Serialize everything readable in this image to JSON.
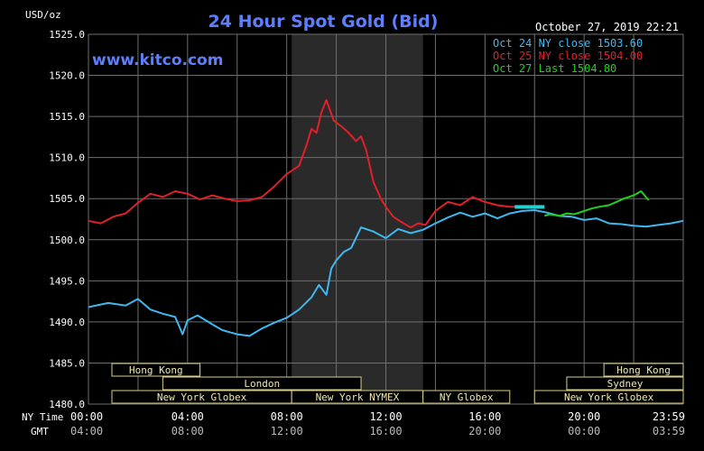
{
  "header": {
    "unit": "USD/oz",
    "title": "24 Hour Spot Gold (Bid)",
    "watermark": "www.kitco.com",
    "timestamp": "October 27, 2019 22:21"
  },
  "legend": [
    {
      "text": "Oct 24 NY close 1503.60",
      "color": "#3fb8f0"
    },
    {
      "text": "Oct 25 NY close 1504.00",
      "color": "#e0202a"
    },
    {
      "text": "Oct 27 Last 1504.80",
      "color": "#22d020"
    }
  ],
  "axis_prefix": {
    "ny": "NY Time",
    "gmt": "GMT"
  },
  "sessions": [
    {
      "id": "hong-kong-1",
      "label": "Hong Kong"
    },
    {
      "id": "london",
      "label": "London"
    },
    {
      "id": "new-york-globex-1",
      "label": "New York Globex"
    },
    {
      "id": "new-york-nymex",
      "label": "New York NYMEX"
    },
    {
      "id": "ny-globex",
      "label": "NY Globex"
    },
    {
      "id": "hong-kong-2",
      "label": "Hong Kong"
    },
    {
      "id": "sydney",
      "label": "Sydney"
    },
    {
      "id": "new-york-globex-2",
      "label": "New York Globex"
    }
  ],
  "chart_data": {
    "type": "line",
    "title": "24 Hour Spot Gold (Bid)",
    "ylabel": "USD/oz",
    "xlabel": "",
    "ylim": [
      1480,
      1525
    ],
    "y_ticks": [
      1480,
      1485,
      1490,
      1495,
      1500,
      1505,
      1510,
      1515,
      1520,
      1525
    ],
    "y_tick_labels": [
      "1480.0",
      "1485.0",
      "1490.0",
      "1495.0",
      "1500.0",
      "1505.0",
      "1510.0",
      "1515.0",
      "1520.0",
      "1525.0"
    ],
    "x_range_hours": [
      0,
      24
    ],
    "x_ticks_hours": [
      0,
      4,
      8,
      12,
      16,
      20,
      24
    ],
    "x_tick_labels_ny": [
      "00:00",
      "04:00",
      "08:00",
      "12:00",
      "16:00",
      "20:00",
      "23:59"
    ],
    "x_tick_labels_gmt": [
      "04:00",
      "08:00",
      "12:00",
      "16:00",
      "20:00",
      "00:00",
      "03:59"
    ],
    "highlight_band_hours": [
      8.2,
      13.5
    ],
    "grid": true,
    "legend_position": "top-right",
    "series": [
      {
        "name": "Oct 24 NY close 1503.60",
        "color": "#3fb8f0",
        "x": [
          0,
          0.8,
          1.5,
          2.0,
          2.5,
          3.0,
          3.5,
          3.8,
          4.0,
          4.4,
          5.0,
          5.4,
          6.0,
          6.5,
          7.0,
          7.5,
          8.0,
          8.5,
          9.0,
          9.3,
          9.6,
          9.8,
          10.0,
          10.3,
          10.6,
          11.0,
          11.5,
          12.0,
          12.5,
          13.0,
          13.5,
          14.0,
          14.5,
          15.0,
          15.5,
          16.0,
          16.5,
          17.0,
          17.5,
          18.0,
          18.5,
          19.0,
          19.5,
          20.0,
          20.5,
          21.0,
          21.5,
          22.0,
          22.5,
          23.0,
          23.5,
          24.0
        ],
        "y": [
          1491.8,
          1492.3,
          1492.0,
          1492.8,
          1491.5,
          1491.0,
          1490.6,
          1488.5,
          1490.2,
          1490.8,
          1489.7,
          1489.0,
          1488.5,
          1488.3,
          1489.2,
          1489.9,
          1490.5,
          1491.5,
          1493.0,
          1494.5,
          1493.3,
          1496.5,
          1497.5,
          1498.5,
          1499.0,
          1501.5,
          1501.0,
          1500.2,
          1501.3,
          1500.8,
          1501.2,
          1502.0,
          1502.7,
          1503.3,
          1502.8,
          1503.2,
          1502.6,
          1503.2,
          1503.5,
          1503.6,
          1503.3,
          1502.9,
          1502.8,
          1502.4,
          1502.6,
          1502.0,
          1501.9,
          1501.7,
          1501.6,
          1501.8,
          1502.0,
          1502.3
        ]
      },
      {
        "name": "Oct 25 NY close 1504.00",
        "color": "#e0202a",
        "x": [
          0,
          0.5,
          1.0,
          1.5,
          2.0,
          2.5,
          3.0,
          3.5,
          4.0,
          4.5,
          5.0,
          5.5,
          6.0,
          6.5,
          7.0,
          7.5,
          8.0,
          8.5,
          8.8,
          9.0,
          9.2,
          9.4,
          9.6,
          9.9,
          10.2,
          10.5,
          10.8,
          11.0,
          11.2,
          11.5,
          11.8,
          12.0,
          12.3,
          12.6,
          13.0,
          13.3,
          13.6,
          14.0,
          14.5,
          15.0,
          15.5,
          16.0,
          16.5,
          17.0,
          17.4
        ],
        "y": [
          1502.3,
          1502.0,
          1502.8,
          1503.2,
          1504.5,
          1505.6,
          1505.2,
          1505.9,
          1505.6,
          1504.9,
          1505.4,
          1505.0,
          1504.7,
          1504.8,
          1505.2,
          1506.5,
          1508.0,
          1509.0,
          1511.5,
          1513.5,
          1513.0,
          1515.5,
          1517.0,
          1514.5,
          1513.8,
          1513.0,
          1512.0,
          1512.6,
          1511.0,
          1507.0,
          1505.0,
          1504.0,
          1502.8,
          1502.2,
          1501.5,
          1502.0,
          1501.8,
          1503.5,
          1504.6,
          1504.2,
          1505.2,
          1504.6,
          1504.2,
          1504.0,
          1504.0
        ]
      },
      {
        "name": "Oct 27 Last 1504.80",
        "color": "#22d020",
        "x": [
          18.4,
          18.6,
          18.8,
          19.0,
          19.3,
          19.6,
          20.0,
          20.3,
          20.6,
          21.0,
          21.3,
          21.6,
          22.0,
          22.3,
          22.6
        ],
        "y": [
          1502.9,
          1503.1,
          1503.0,
          1502.9,
          1503.2,
          1503.1,
          1503.5,
          1503.8,
          1504.0,
          1504.2,
          1504.6,
          1505.0,
          1505.4,
          1505.9,
          1504.8
        ]
      }
    ],
    "cyan_overlay_segment": {
      "x": [
        17.2,
        18.4
      ],
      "y": [
        1504.0,
        1504.0
      ]
    }
  }
}
